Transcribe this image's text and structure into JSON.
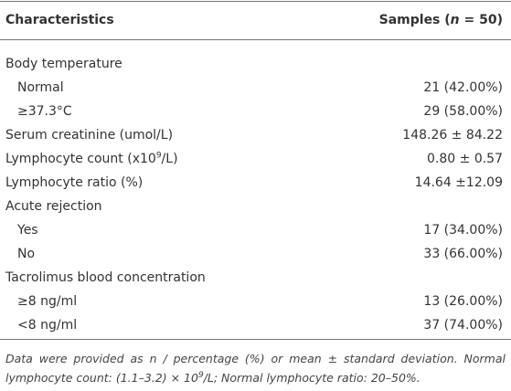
{
  "table": {
    "header": {
      "characteristics": "Characteristics",
      "samples": [
        "Samples (",
        "n",
        " = 50)"
      ]
    },
    "sections": [
      {
        "label": "Body temperature",
        "rows": [
          [
            "Normal",
            "21 (42.00%)"
          ],
          [
            "≥37.3°C",
            "29 (58.00%)"
          ]
        ]
      },
      {
        "label": "Serum creatinine (umol/L)",
        "value": "148.26 ± 84.22"
      },
      {
        "label": [
          "Lymphocyte count (x10",
          "9",
          "/L)"
        ],
        "value": "0.80 ± 0.57"
      },
      {
        "label": "Lymphocyte ratio (%)",
        "value": "14.64 ±12.09"
      },
      {
        "label": "Acute rejection",
        "rows": [
          [
            "Yes",
            "17 (34.00%)"
          ],
          [
            "No",
            "33 (66.00%)"
          ]
        ]
      },
      {
        "label": "Tacrolimus blood concentration",
        "rows": [
          [
            "≥8 ng/ml",
            "13 (26.00%)"
          ],
          [
            "<8 ng/ml",
            "37 (74.00%)"
          ]
        ]
      }
    ],
    "footnote": [
      "Data were provided as n / percentage (%) or mean ± standard deviation. Normal lymphocyte count: (1.1–3.2) × 10",
      "9",
      "/L; Normal lymphocyte ratio: 20–50%."
    ]
  }
}
